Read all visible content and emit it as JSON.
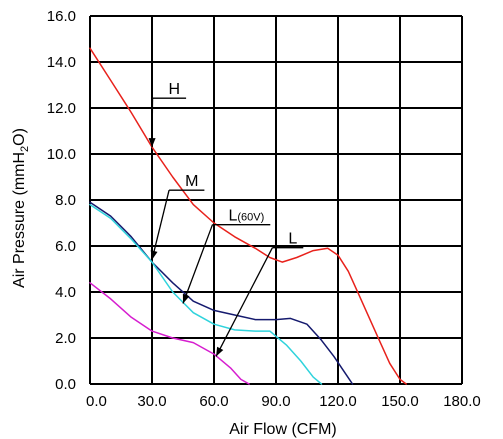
{
  "chart_data": {
    "type": "line",
    "xlabel": "Air Flow (CFM)",
    "ylabel": {
      "main": "Air Pressure (mmH",
      "sub": "2",
      "tail": "O)"
    },
    "xlim": [
      0,
      180
    ],
    "ylim": [
      0,
      16
    ],
    "x_ticks": [
      "0.0",
      "30.0",
      "60.0",
      "90.0",
      "120.0",
      "150.0",
      "180.0"
    ],
    "y_ticks": [
      "0.0",
      "2.0",
      "4.0",
      "6.0",
      "8.0",
      "10.0",
      "12.0",
      "14.0",
      "16.0"
    ],
    "grid": true,
    "series": [
      {
        "name": "H",
        "color": "#e8221c",
        "x": [
          0,
          10,
          20,
          30,
          40,
          50,
          60,
          70,
          80,
          87,
          93,
          100,
          108,
          115,
          120,
          125,
          130,
          135,
          140,
          145,
          150,
          153
        ],
        "y": [
          14.6,
          13.2,
          11.8,
          10.3,
          9.0,
          7.8,
          7.0,
          6.4,
          5.9,
          5.5,
          5.3,
          5.5,
          5.8,
          5.9,
          5.6,
          4.9,
          3.9,
          2.9,
          1.9,
          0.9,
          0.2,
          0.0
        ]
      },
      {
        "name": "M",
        "color": "#151a6e",
        "x": [
          0,
          10,
          20,
          30,
          40,
          50,
          60,
          70,
          80,
          90,
          97,
          105,
          112,
          118,
          124,
          127
        ],
        "y": [
          7.9,
          7.3,
          6.4,
          5.3,
          4.4,
          3.6,
          3.2,
          3.0,
          2.8,
          2.8,
          2.85,
          2.6,
          1.9,
          1.2,
          0.4,
          0.0
        ]
      },
      {
        "name": "L(60V)",
        "color": "#2fd3dc",
        "x": [
          0,
          10,
          20,
          30,
          40,
          50,
          60,
          70,
          80,
          87,
          95,
          102,
          108,
          112
        ],
        "y": [
          7.8,
          7.2,
          6.3,
          5.3,
          4.0,
          3.1,
          2.6,
          2.35,
          2.3,
          2.3,
          1.7,
          1.0,
          0.3,
          0.0
        ]
      },
      {
        "name": "L",
        "color": "#d61ecf",
        "x": [
          0,
          10,
          20,
          30,
          40,
          50,
          60,
          68,
          73,
          77
        ],
        "y": [
          4.4,
          3.7,
          2.9,
          2.3,
          2.0,
          1.8,
          1.3,
          0.7,
          0.2,
          0.0
        ]
      }
    ],
    "annotations": [
      {
        "label": "H",
        "sub": "",
        "text_at": [
          38,
          12.6
        ],
        "line_to": [
          30,
          10.3
        ]
      },
      {
        "label": "M",
        "sub": "",
        "text_at": [
          46,
          8.6
        ],
        "line_to": [
          30,
          5.4
        ]
      },
      {
        "label": "L",
        "sub": "(60V)",
        "text_at": [
          67,
          7.1
        ],
        "line_to": [
          45,
          3.5
        ]
      },
      {
        "label": "L",
        "sub": "",
        "text_at": [
          96,
          6.1
        ],
        "line_to": [
          61,
          1.2
        ]
      }
    ]
  }
}
